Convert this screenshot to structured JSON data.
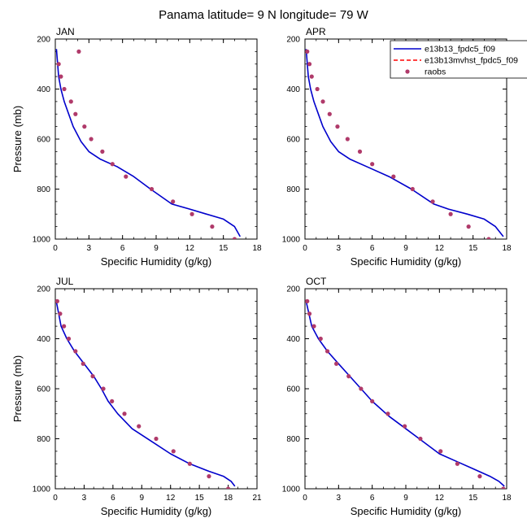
{
  "title": "Panama  latitude= 9 N longitude= 79 W",
  "legend": {
    "entries": [
      {
        "label": "e13b13_fpdc5_f09",
        "style": "line",
        "color": "#0000cc"
      },
      {
        "label": "e13b13mvhst_fpdc5_f09",
        "style": "dashed",
        "color": "#ff0000"
      },
      {
        "label": "raobs",
        "style": "dot",
        "color": "#b03a6a"
      }
    ]
  },
  "colors": {
    "model": "#0000cc",
    "model2": "#ff0000",
    "obs": "#b03a6a"
  },
  "chart_data": [
    {
      "type": "line",
      "panel_title": "JAN",
      "xlabel": "Specific Humidity (g/kg)",
      "ylabel": "Pressure (mb)",
      "xlim": [
        0,
        18
      ],
      "ylim": [
        200,
        1000
      ],
      "y_reversed": true,
      "xticks": [
        0,
        3,
        6,
        9,
        12,
        15,
        18
      ],
      "yticks": [
        200,
        400,
        600,
        800,
        1000
      ],
      "series": [
        {
          "name": "e13b13_fpdc5_f09",
          "kind": "line",
          "x": [
            16.5,
            16.0,
            15.0,
            13.5,
            12.0,
            10.4,
            8.5,
            7.0,
            5.5,
            4.0,
            3.0,
            2.3,
            1.6,
            1.2,
            0.8,
            0.5,
            0.3,
            0.1
          ],
          "y": [
            990,
            950,
            920,
            900,
            880,
            860,
            800,
            750,
            710,
            680,
            650,
            610,
            550,
            500,
            450,
            400,
            350,
            240
          ]
        },
        {
          "name": "raobs",
          "kind": "scatter",
          "x": [
            16.0,
            14.0,
            12.2,
            10.5,
            8.6,
            6.3,
            5.1,
            4.2,
            3.2,
            2.6,
            1.8,
            1.4,
            0.8,
            0.5,
            0.3,
            2.1
          ],
          "y": [
            1000,
            950,
            900,
            850,
            800,
            750,
            700,
            650,
            600,
            550,
            500,
            450,
            400,
            350,
            300,
            250
          ]
        }
      ]
    },
    {
      "type": "line",
      "panel_title": "APR",
      "xlabel": "Specific Humidity (g/kg)",
      "ylabel": "",
      "xlim": [
        0,
        18
      ],
      "ylim": [
        200,
        1000
      ],
      "y_reversed": true,
      "xticks": [
        0,
        3,
        6,
        9,
        12,
        15,
        18
      ],
      "yticks": [
        200,
        400,
        600,
        800,
        1000
      ],
      "series": [
        {
          "name": "e13b13_fpdc5_f09",
          "kind": "line",
          "x": [
            17.7,
            17.0,
            16.0,
            14.5,
            12.8,
            11.5,
            9.5,
            7.5,
            5.5,
            4.0,
            3.0,
            2.3,
            1.6,
            1.2,
            0.8,
            0.5,
            0.3,
            0.1
          ],
          "y": [
            990,
            950,
            920,
            900,
            880,
            860,
            800,
            750,
            710,
            680,
            650,
            610,
            550,
            500,
            450,
            400,
            350,
            240
          ]
        },
        {
          "name": "raobs",
          "kind": "scatter",
          "x": [
            16.4,
            14.6,
            13.0,
            11.4,
            9.6,
            7.9,
            6.0,
            4.9,
            3.8,
            2.9,
            2.2,
            1.6,
            1.1,
            0.6,
            0.4,
            0.2
          ],
          "y": [
            1000,
            950,
            900,
            850,
            800,
            750,
            700,
            650,
            600,
            550,
            500,
            450,
            400,
            350,
            300,
            250
          ]
        }
      ]
    },
    {
      "type": "line",
      "panel_title": "JUL",
      "xlabel": "Specific Humidity (g/kg)",
      "ylabel": "Pressure (mb)",
      "xlim": [
        0,
        21
      ],
      "ylim": [
        200,
        1000
      ],
      "y_reversed": true,
      "xticks": [
        0,
        3,
        6,
        9,
        12,
        15,
        18,
        21
      ],
      "yticks": [
        200,
        400,
        600,
        800,
        1000
      ],
      "series": [
        {
          "name": "e13b13_fpdc5_f09",
          "kind": "line",
          "x": [
            18.7,
            18.3,
            17.5,
            16.0,
            14.0,
            12.0,
            10.0,
            8.0,
            6.5,
            5.5,
            4.8,
            4.0,
            3.0,
            2.0,
            1.2,
            0.6,
            0.1
          ],
          "y": [
            990,
            970,
            950,
            930,
            900,
            860,
            810,
            760,
            700,
            650,
            600,
            550,
            500,
            450,
            400,
            350,
            250
          ]
        },
        {
          "name": "raobs",
          "kind": "scatter",
          "x": [
            18.0,
            16.0,
            14.0,
            12.3,
            10.5,
            8.7,
            7.2,
            5.9,
            5.0,
            3.9,
            2.9,
            2.1,
            1.4,
            0.9,
            0.5,
            0.2
          ],
          "y": [
            1000,
            950,
            900,
            850,
            800,
            750,
            700,
            650,
            600,
            550,
            500,
            450,
            400,
            350,
            300,
            250
          ]
        }
      ]
    },
    {
      "type": "line",
      "panel_title": "OCT",
      "xlabel": "Specific Humidity (g/kg)",
      "ylabel": "",
      "xlim": [
        0,
        18
      ],
      "ylim": [
        200,
        1000
      ],
      "y_reversed": true,
      "xticks": [
        0,
        3,
        6,
        9,
        12,
        15,
        18
      ],
      "yticks": [
        200,
        400,
        600,
        800,
        1000
      ],
      "series": [
        {
          "name": "e13b13_fpdc5_f09",
          "kind": "line",
          "x": [
            17.8,
            17.3,
            16.5,
            15.0,
            13.5,
            12.0,
            10.5,
            9.0,
            7.5,
            6.0,
            5.0,
            4.0,
            3.0,
            2.0,
            1.2,
            0.6,
            0.1
          ],
          "y": [
            990,
            970,
            950,
            920,
            890,
            860,
            810,
            760,
            710,
            650,
            600,
            550,
            500,
            450,
            400,
            350,
            250
          ]
        },
        {
          "name": "raobs",
          "kind": "scatter",
          "x": [
            17.7,
            15.6,
            13.6,
            12.1,
            10.3,
            8.9,
            7.4,
            6.0,
            5.0,
            3.9,
            2.8,
            2.0,
            1.4,
            0.8,
            0.4,
            0.2
          ],
          "y": [
            1000,
            950,
            900,
            850,
            800,
            750,
            700,
            650,
            600,
            550,
            500,
            450,
            400,
            350,
            300,
            250
          ]
        }
      ]
    }
  ]
}
